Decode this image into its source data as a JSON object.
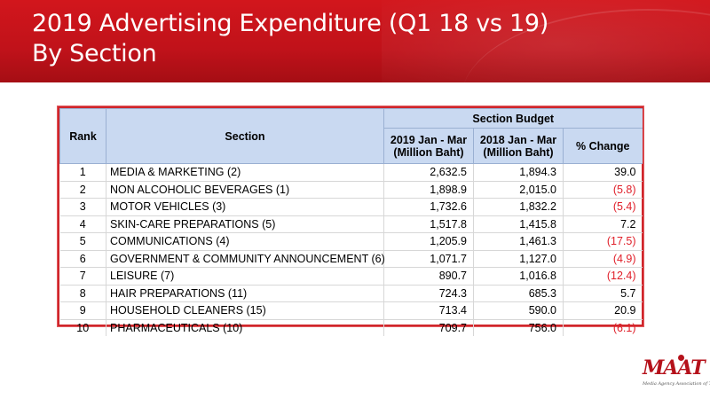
{
  "slide": {
    "title_line1": "2019 Advertising Expenditure (Q1 18 vs 19)",
    "title_line2": "By Section",
    "colors": {
      "banner": "#c0121a",
      "header_fill": "#c9d9f1",
      "border": "#d0262b",
      "negative_text": "#e0202a"
    }
  },
  "table": {
    "headers": {
      "rank": "Rank",
      "section": "Section",
      "group": "Section Budget",
      "col_2019_line1": "2019 Jan - Mar",
      "col_2019_line2": "(Million Baht)",
      "col_2018_line1": "2018 Jan - Mar",
      "col_2018_line2": "(Million Baht)",
      "change": "% Change"
    },
    "rows": [
      {
        "rank": "1",
        "section": "MEDIA & MARKETING (2)",
        "y2019": "2,632.5",
        "y2018": "1,894.3",
        "change": "39.0",
        "negative": false
      },
      {
        "rank": "2",
        "section": "NON ALCOHOLIC BEVERAGES (1)",
        "y2019": "1,898.9",
        "y2018": "2,015.0",
        "change": "(5.8)",
        "negative": true
      },
      {
        "rank": "3",
        "section": "MOTOR VEHICLES (3)",
        "y2019": "1,732.6",
        "y2018": "1,832.2",
        "change": "(5.4)",
        "negative": true
      },
      {
        "rank": "4",
        "section": "SKIN-CARE PREPARATIONS (5)",
        "y2019": "1,517.8",
        "y2018": "1,415.8",
        "change": "7.2",
        "negative": false
      },
      {
        "rank": "5",
        "section": "COMMUNICATIONS (4)",
        "y2019": "1,205.9",
        "y2018": "1,461.3",
        "change": "(17.5)",
        "negative": true
      },
      {
        "rank": "6",
        "section": "GOVERNMENT & COMMUNITY ANNOUNCEMENT (6)",
        "y2019": "1,071.7",
        "y2018": "1,127.0",
        "change": "(4.9)",
        "negative": true
      },
      {
        "rank": "7",
        "section": "LEISURE (7)",
        "y2019": "890.7",
        "y2018": "1,016.8",
        "change": "(12.4)",
        "negative": true
      },
      {
        "rank": "8",
        "section": "HAIR PREPARATIONS (11)",
        "y2019": "724.3",
        "y2018": "685.3",
        "change": "5.7",
        "negative": false
      },
      {
        "rank": "9",
        "section": "HOUSEHOLD CLEANERS (15)",
        "y2019": "713.4",
        "y2018": "590.0",
        "change": "20.9",
        "negative": false
      },
      {
        "rank": "10",
        "section": "PHARMACEUTICALS (10)",
        "y2019": "709.7",
        "y2018": "756.0",
        "change": "(6.1)",
        "negative": true
      }
    ]
  },
  "logo": {
    "text": "MAAT",
    "subtitle": "Media Agency Association of Thailand"
  }
}
